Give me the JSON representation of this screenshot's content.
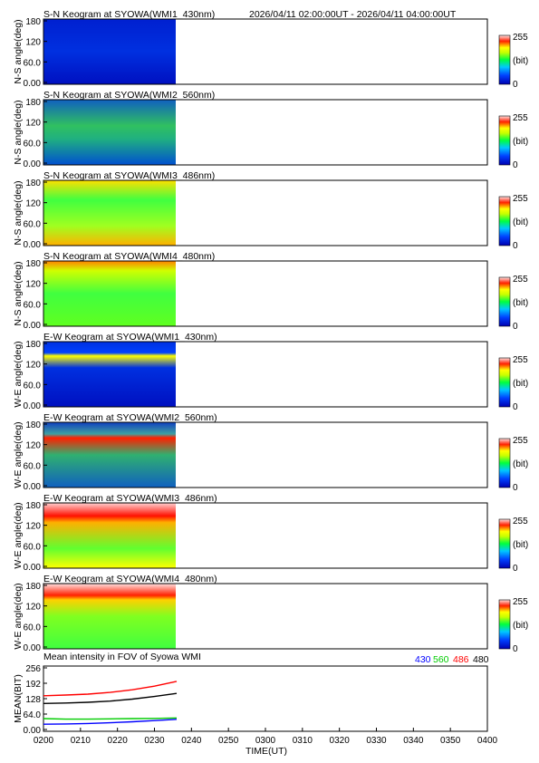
{
  "header": {
    "time_range": "2026/04/11 02:00:00UT - 2026/04/11 04:00:00UT"
  },
  "keograms": [
    {
      "title": "S-N Keogram at SYOWA(WMI1_430nm)",
      "ylabel": "N-S angle(deg)",
      "pattern": "blue",
      "colorbar_unit": "(bit)",
      "colorbar_max": "255",
      "colorbar_min": "0"
    },
    {
      "title": "S-N Keogram at SYOWA(WMI2_560nm)",
      "ylabel": "N-S angle(deg)",
      "pattern": "bluegreen",
      "colorbar_unit": "(bit)",
      "colorbar_max": "255",
      "colorbar_min": "0"
    },
    {
      "title": "S-N Keogram at SYOWA(WMI3_486nm)",
      "ylabel": "N-S angle(deg)",
      "pattern": "warm",
      "colorbar_unit": "(bit)",
      "colorbar_max": "255",
      "colorbar_min": "0"
    },
    {
      "title": "S-N Keogram at SYOWA(WMI4_480nm)",
      "ylabel": "N-S angle(deg)",
      "pattern": "green",
      "colorbar_unit": "(bit)",
      "colorbar_max": "255",
      "colorbar_min": "0"
    },
    {
      "title": "E-W Keogram at SYOWA(WMI1_430nm)",
      "ylabel": "W-E angle(deg)",
      "pattern": "blue_band",
      "colorbar_unit": "(bit)",
      "colorbar_max": "255",
      "colorbar_min": "0"
    },
    {
      "title": "E-W Keogram at SYOWA(WMI2_560nm)",
      "ylabel": "W-E angle(deg)",
      "pattern": "bluegreen_band",
      "colorbar_unit": "(bit)",
      "colorbar_max": "255",
      "colorbar_min": "0"
    },
    {
      "title": "E-W Keogram at SYOWA(WMI3_486nm)",
      "ylabel": "W-E angle(deg)",
      "pattern": "warm_band",
      "colorbar_unit": "(bit)",
      "colorbar_max": "255",
      "colorbar_min": "0"
    },
    {
      "title": "E-W Keogram at SYOWA(WMI4_480nm)",
      "ylabel": "W-E angle(deg)",
      "pattern": "green_band",
      "colorbar_unit": "(bit)",
      "colorbar_max": "255",
      "colorbar_min": "0"
    }
  ],
  "keogram_yticks": [
    "180",
    "120",
    "60.0",
    "0.00"
  ],
  "colors": {
    "series_430": "#0000ff",
    "series_560": "#00cc00",
    "series_486": "#ff0000",
    "series_480": "#000000"
  },
  "chart_data": {
    "type": "line",
    "title": "Mean intensity in FOV of Syowa WMI",
    "xlabel": "TIME(UT)",
    "ylabel": "MEAN(BIT)",
    "x_tick_labels": [
      "0200",
      "0210",
      "0220",
      "0230",
      "0240",
      "0250",
      "0300",
      "0310",
      "0320",
      "0330",
      "0340",
      "0350",
      "0400"
    ],
    "y_tick_labels": [
      "256",
      "192",
      "128",
      "64.0",
      "0.00"
    ],
    "xlim_minutes_after_0200": [
      0,
      120
    ],
    "data_coverage_minutes_after_0200": [
      0,
      36
    ],
    "ylim": [
      0,
      256
    ],
    "x": [
      0,
      6,
      12,
      18,
      24,
      30,
      36
    ],
    "series": [
      {
        "name": "430",
        "values": [
          22,
          23,
          25,
          28,
          32,
          37,
          42
        ]
      },
      {
        "name": "560",
        "values": [
          45,
          43,
          43,
          44,
          45,
          46,
          48
        ]
      },
      {
        "name": "486",
        "values": [
          140,
          143,
          147,
          154,
          165,
          180,
          200
        ]
      },
      {
        "name": "480",
        "values": [
          108,
          110,
          113,
          118,
          126,
          137,
          150
        ]
      }
    ],
    "grid": false,
    "legend": "top-right"
  }
}
